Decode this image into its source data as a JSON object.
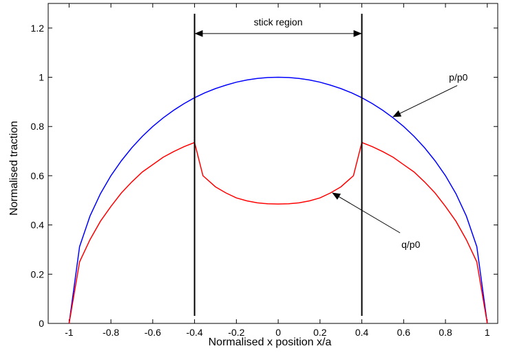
{
  "chart_data": {
    "type": "line",
    "title": "",
    "xlabel": "Normalised x position x/a",
    "ylabel": "Normalised traction",
    "xlim": [
      -1.1,
      1.05
    ],
    "ylim": [
      0,
      1.3
    ],
    "xticks": [
      -1,
      -0.8,
      -0.6,
      -0.4,
      -0.2,
      0,
      0.2,
      0.4,
      0.6,
      0.8,
      1
    ],
    "yticks": [
      0,
      0.2,
      0.4,
      0.6,
      0.8,
      1,
      1.2
    ],
    "xtick_labels": [
      "-1",
      "-0.8",
      "-0.6",
      "-0.4",
      "-0.2",
      "0",
      "0.2",
      "0.4",
      "0.6",
      "0.8",
      "1"
    ],
    "ytick_labels": [
      "0",
      "0.2",
      "0.4",
      "0.6",
      "0.8",
      "1",
      "1.2"
    ],
    "grid": false,
    "series": [
      {
        "color": "#0000ff",
        "x": [
          -1,
          -0.95,
          -0.9,
          -0.85,
          -0.8,
          -0.75,
          -0.7,
          -0.65,
          -0.6,
          -0.55,
          -0.5,
          -0.45,
          -0.4,
          -0.35,
          -0.3,
          -0.25,
          -0.2,
          -0.15,
          -0.1,
          -0.05,
          0,
          0.05,
          0.1,
          0.15,
          0.2,
          0.25,
          0.3,
          0.35,
          0.4,
          0.45,
          0.5,
          0.55,
          0.6,
          0.65,
          0.7,
          0.75,
          0.8,
          0.85,
          0.9,
          0.95,
          1
        ],
        "y": [
          0,
          0.312,
          0.436,
          0.527,
          0.6,
          0.661,
          0.714,
          0.76,
          0.8,
          0.835,
          0.866,
          0.893,
          0.917,
          0.937,
          0.954,
          0.968,
          0.98,
          0.989,
          0.995,
          0.999,
          1,
          0.999,
          0.995,
          0.989,
          0.98,
          0.968,
          0.954,
          0.937,
          0.917,
          0.893,
          0.866,
          0.835,
          0.8,
          0.76,
          0.714,
          0.661,
          0.6,
          0.527,
          0.436,
          0.312,
          0
        ]
      },
      {
        "color": "#ff0000",
        "x": [
          -1,
          -0.95,
          -0.9,
          -0.85,
          -0.8,
          -0.75,
          -0.7,
          -0.65,
          -0.6,
          -0.55,
          -0.5,
          -0.45,
          -0.4,
          -0.36,
          -0.3,
          -0.25,
          -0.2,
          -0.15,
          -0.1,
          -0.05,
          0,
          0.05,
          0.1,
          0.15,
          0.2,
          0.25,
          0.3,
          0.36,
          0.4,
          0.45,
          0.5,
          0.55,
          0.6,
          0.65,
          0.7,
          0.75,
          0.8,
          0.85,
          0.9,
          0.95,
          1
        ],
        "y": [
          0,
          0.25,
          0.34,
          0.415,
          0.475,
          0.53,
          0.575,
          0.615,
          0.645,
          0.675,
          0.698,
          0.718,
          0.735,
          0.6,
          0.555,
          0.53,
          0.51,
          0.498,
          0.49,
          0.486,
          0.485,
          0.486,
          0.49,
          0.498,
          0.51,
          0.53,
          0.555,
          0.6,
          0.735,
          0.718,
          0.698,
          0.675,
          0.645,
          0.615,
          0.575,
          0.53,
          0.475,
          0.415,
          0.34,
          0.25,
          0
        ]
      }
    ],
    "vertical_lines": [
      -0.4,
      0.4
    ],
    "annotations": {
      "stick_region": {
        "text": "stick region",
        "x_from": -0.4,
        "x_to": 0.4,
        "y": 1.2
      },
      "p_label": {
        "text": "p/p0",
        "text_x": 0.83,
        "text_y": 1.0,
        "arrow_x": 0.55,
        "arrow_y": 0.84
      },
      "q_label": {
        "text": "q/p0",
        "text_x": 0.55,
        "text_y": 0.34,
        "arrow_x": 0.26,
        "arrow_y": 0.53
      }
    }
  }
}
